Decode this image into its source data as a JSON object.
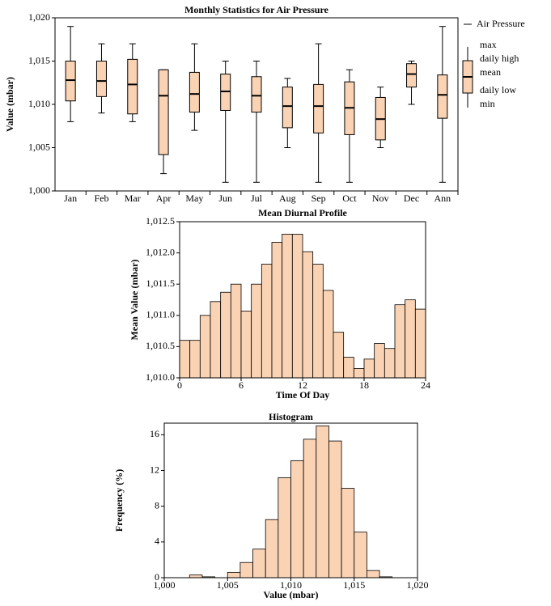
{
  "chart_data": [
    {
      "type": "box",
      "title": "Monthly Statistics for Air Pressure",
      "ylabel": "Value (mbar)",
      "categories": [
        "Jan",
        "Feb",
        "Mar",
        "Apr",
        "May",
        "Jun",
        "Jul",
        "Aug",
        "Sep",
        "Oct",
        "Nov",
        "Dec",
        "Ann"
      ],
      "series": [
        {
          "name": "Air Pressure",
          "color": "#fad3b4",
          "max": [
            1019,
            1017,
            1017,
            1014,
            1017,
            1015,
            1015,
            1013,
            1017,
            1014,
            1012,
            1015,
            1019
          ],
          "daily_high": [
            1015,
            1015,
            1015.2,
            1014,
            1013.7,
            1013.5,
            1013.2,
            1012,
            1012.3,
            1012.6,
            1010.8,
            1014.7,
            1013.4
          ],
          "mean": [
            1012.8,
            1012.7,
            1012.3,
            1011,
            1011.2,
            1011.5,
            1011,
            1009.8,
            1009.8,
            1009.6,
            1008.3,
            1013.5,
            1011.1
          ],
          "daily_low": [
            1010.4,
            1010.9,
            1008.9,
            1004.2,
            1009.1,
            1009.3,
            1009.1,
            1007.3,
            1006.7,
            1006.5,
            1005.9,
            1012,
            1008.4
          ],
          "min": [
            1008,
            1009,
            1008,
            1002,
            1007,
            1001,
            1001,
            1005,
            1001,
            1001,
            1005,
            1010,
            1001
          ]
        }
      ],
      "legend_labels": [
        "max",
        "daily high",
        "mean",
        "daily low",
        "min"
      ],
      "ylim": [
        1000,
        1020
      ],
      "yticks": [
        {
          "value": 1000,
          "label": "1,000"
        },
        {
          "value": 1005,
          "label": "1,005"
        },
        {
          "value": 1010,
          "label": "1,010"
        },
        {
          "value": 1015,
          "label": "1,015"
        },
        {
          "value": 1020,
          "label": "1,020"
        }
      ]
    },
    {
      "type": "histogram",
      "title": "Mean Diurnal Profile",
      "xlabel": "Time Of Day",
      "ylabel": "Mean Value (mbar)",
      "color": "#fad3b4",
      "bins": [
        0,
        1,
        2,
        3,
        4,
        5,
        6,
        7,
        8,
        9,
        10,
        11,
        12,
        13,
        14,
        15,
        16,
        17,
        18,
        19,
        20,
        21,
        22,
        23,
        24
      ],
      "values": [
        1010.6,
        1010.6,
        1011.0,
        1011.22,
        1011.37,
        1011.5,
        1011.07,
        1011.5,
        1011.82,
        1012.17,
        1012.3,
        1012.3,
        1012.02,
        1011.82,
        1011.4,
        1010.73,
        1010.33,
        1010.15,
        1010.3,
        1010.55,
        1010.47,
        1011.17,
        1011.25,
        1011.1
      ],
      "xlim": [
        0,
        24
      ],
      "xticks": [
        0,
        6,
        12,
        18,
        24
      ],
      "ylim": [
        1010,
        1012.5
      ],
      "yticks": [
        {
          "value": 1010,
          "label": "1,010.0"
        },
        {
          "value": 1010.5,
          "label": "1,010.5"
        },
        {
          "value": 1011,
          "label": "1,011.0"
        },
        {
          "value": 1011.5,
          "label": "1,011.5"
        },
        {
          "value": 1012,
          "label": "1,012.0"
        },
        {
          "value": 1012.5,
          "label": "1,012.5"
        }
      ]
    },
    {
      "type": "histogram",
      "title": "Histogram",
      "xlabel": "Value (mbar)",
      "ylabel": "Frequency (%)",
      "color": "#fad3b4",
      "bins": [
        1000,
        1001,
        1002,
        1003,
        1004,
        1005,
        1006,
        1007,
        1008,
        1009,
        1010,
        1011,
        1012,
        1013,
        1014,
        1015,
        1016,
        1017,
        1018,
        1019,
        1020
      ],
      "values": [
        0,
        0,
        0.3,
        0.1,
        0,
        0.6,
        1.7,
        3.2,
        6.5,
        11.2,
        13.1,
        15.5,
        17.0,
        15.3,
        10.0,
        5.1,
        0.8,
        0.1,
        0,
        0
      ],
      "xlim": [
        1000,
        1020
      ],
      "xticks": [
        {
          "value": 1000,
          "label": "1,000"
        },
        {
          "value": 1005,
          "label": "1,005"
        },
        {
          "value": 1010,
          "label": "1,010"
        },
        {
          "value": 1015,
          "label": "1,015"
        },
        {
          "value": 1020,
          "label": "1,020"
        }
      ],
      "ylim": [
        0,
        17.3
      ],
      "yticks": [
        0,
        4,
        8,
        12,
        16
      ]
    }
  ]
}
